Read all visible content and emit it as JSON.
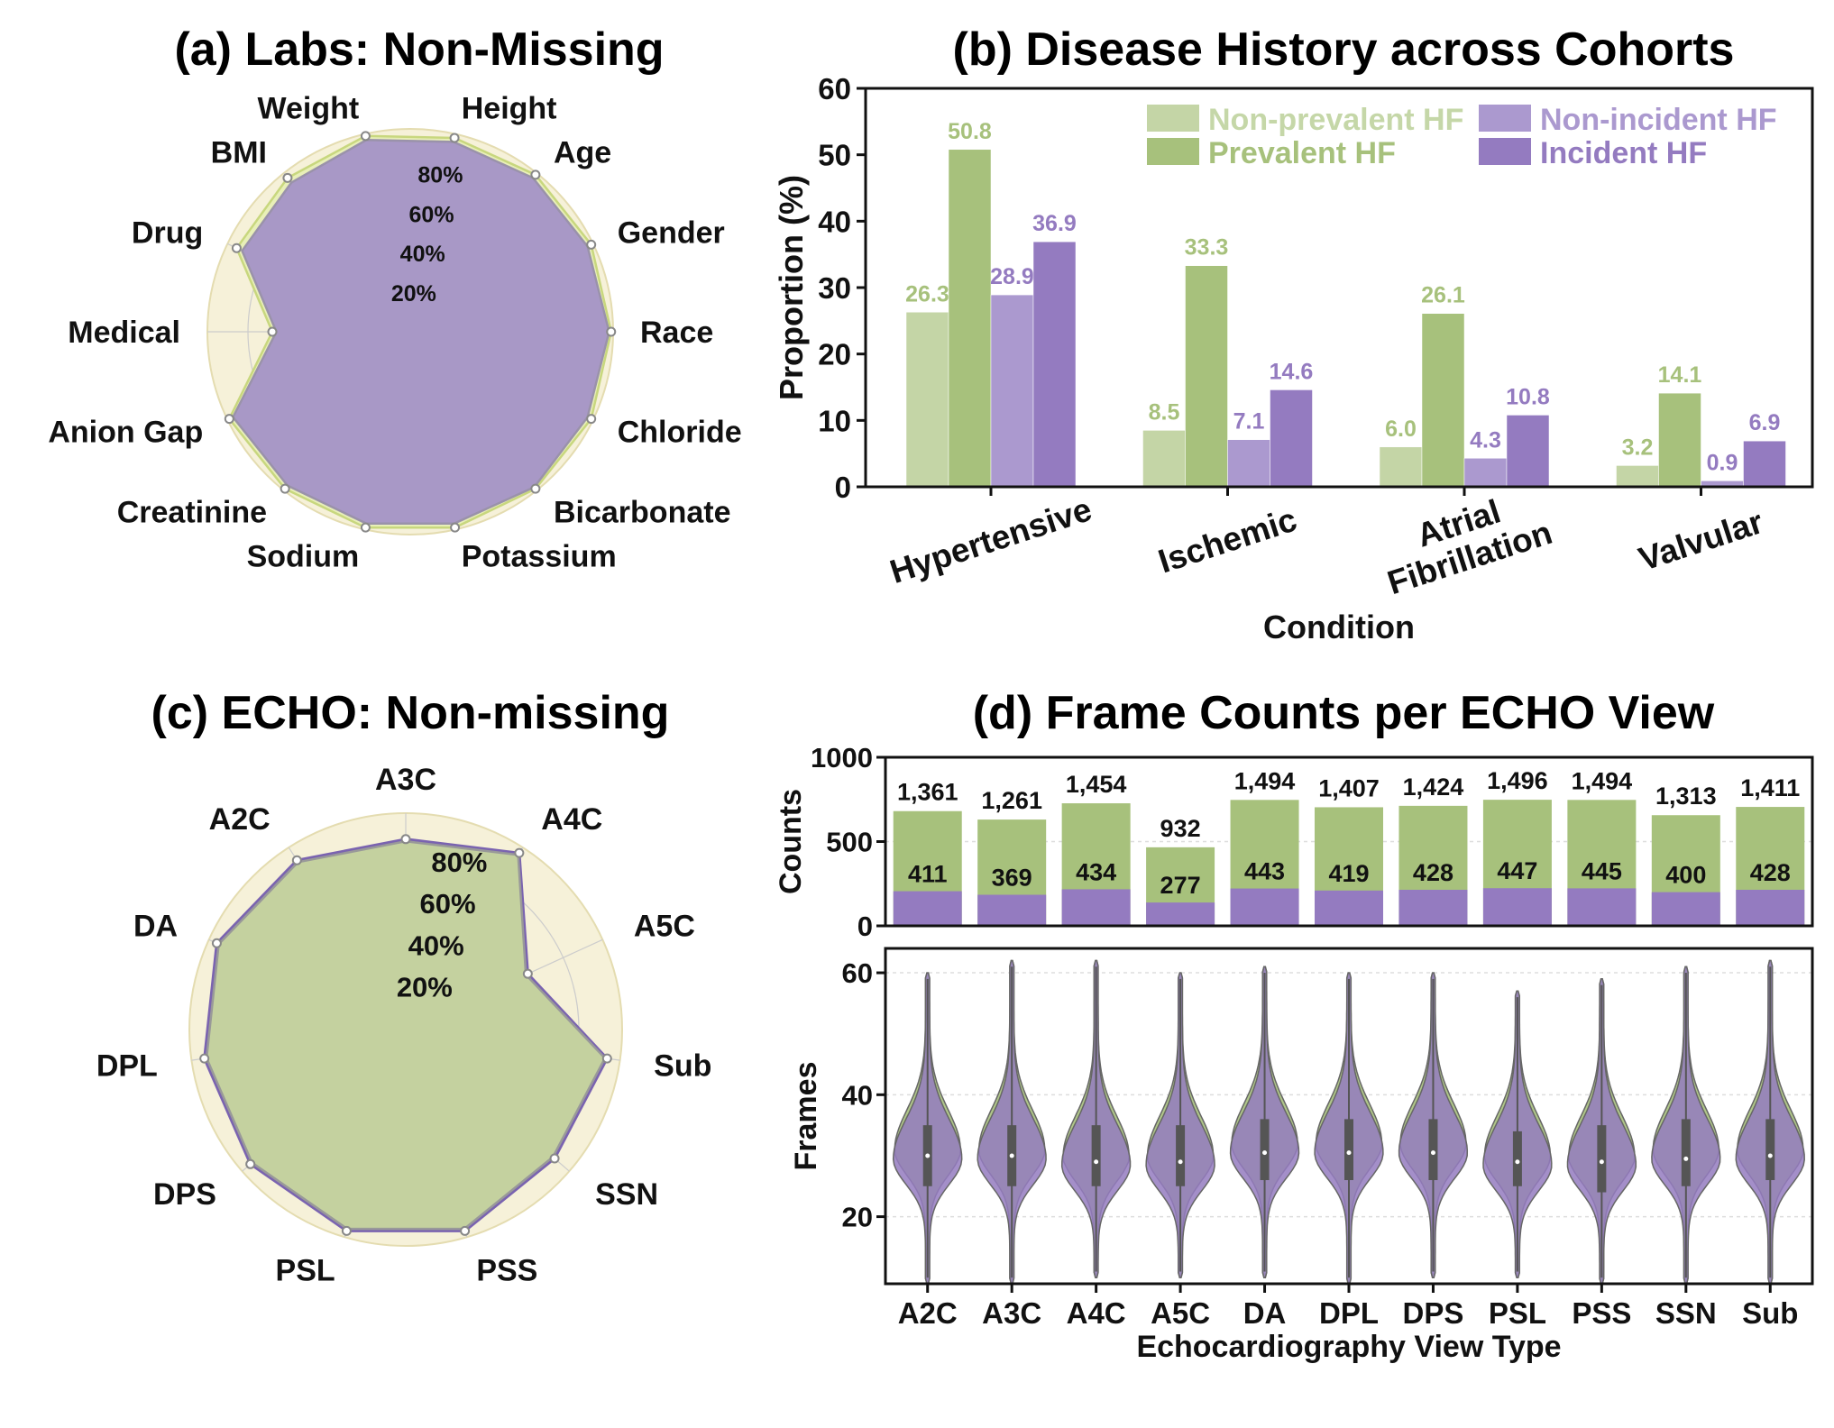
{
  "colors": {
    "light_green": "#c4d5a6",
    "green": "#a7c17c",
    "light_purple": "#ab99cf",
    "purple": "#947bc0",
    "radar_bg": "#f6f1d9",
    "radar_bg_edge": "#e4dcb0",
    "labs_fill": "#a898c6",
    "echo_fill": "#c4d19f",
    "dark_gray": "#555555",
    "grid_gray": "#cccccc"
  },
  "chart_data": [
    {
      "id": "a",
      "type": "radar",
      "title": "(a) Labs: Non-Missing",
      "axes": [
        "Weight",
        "Height",
        "Age",
        "Gender",
        "Race",
        "Chloride",
        "Bicarbonate",
        "Potassium",
        "Sodium",
        "Creatinine",
        "Anion Gap",
        "Medical",
        "Drug",
        "BMI"
      ],
      "rlim": [
        0,
        100
      ],
      "rticks": [
        20,
        40,
        60,
        80
      ],
      "rtick_labels": [
        "20%",
        "40%",
        "60%",
        "80%"
      ],
      "series": [
        {
          "name": "Outer",
          "values": [
            99,
            98,
            99,
            99,
            99,
            99,
            99,
            99,
            99,
            99,
            99,
            68,
            95,
            97
          ]
        },
        {
          "name": "Inner",
          "values": [
            97,
            96,
            97,
            97,
            98,
            97,
            98,
            97,
            97,
            97,
            97,
            66,
            92,
            94
          ]
        }
      ]
    },
    {
      "id": "b",
      "type": "bar",
      "title": "(b) Disease History across Cohorts",
      "xlabel": "Condition",
      "ylabel": "Proportion (%)",
      "ylim": [
        0,
        60
      ],
      "yticks": [
        0,
        10,
        20,
        30,
        40,
        50,
        60
      ],
      "categories": [
        "Hypertensive",
        "Ischemic",
        "Atrial\nFibrillation",
        "Valvular"
      ],
      "series": [
        {
          "name": "Non-prevalent HF",
          "values": [
            26.3,
            8.5,
            6.0,
            3.2
          ]
        },
        {
          "name": "Prevalent HF",
          "values": [
            50.8,
            33.3,
            26.1,
            14.1
          ]
        },
        {
          "name": "Non-incident HF",
          "values": [
            28.9,
            7.1,
            4.3,
            0.9
          ]
        },
        {
          "name": "Incident HF",
          "values": [
            36.9,
            14.6,
            10.8,
            6.9
          ]
        }
      ],
      "value_labels": [
        [
          "26.3",
          "8.5",
          "6.0",
          "3.2"
        ],
        [
          "50.8",
          "33.3",
          "26.1",
          "14.1"
        ],
        [
          "28.9",
          "7.1",
          "4.3",
          "0.9"
        ],
        [
          "36.9",
          "14.6",
          "10.8",
          "6.9"
        ]
      ],
      "legend_position": "top-right"
    },
    {
      "id": "c",
      "type": "radar",
      "title": "(c) ECHO: Non-missing",
      "axes": [
        "A3C",
        "A4C",
        "A5C",
        "Sub",
        "SSN",
        "PSS",
        "PSL",
        "DPS",
        "DPL",
        "DA",
        "A2C"
      ],
      "rlim": [
        0,
        100
      ],
      "rticks": [
        20,
        40,
        60,
        80
      ],
      "rtick_labels": [
        "20%",
        "40%",
        "60%",
        "80%"
      ],
      "series": [
        {
          "name": "Outer",
          "values": [
            88,
            97,
            62,
            94,
            91,
            97,
            97,
            95,
            94,
            96,
            93
          ]
        },
        {
          "name": "Inner",
          "values": [
            87,
            96,
            61,
            93,
            90,
            96,
            96,
            94,
            93,
            95,
            92
          ]
        }
      ]
    },
    {
      "id": "d-top",
      "type": "bar",
      "title": "(d) Frame Counts per ECHO View",
      "ylabel": "Counts",
      "ylim": [
        0,
        1000
      ],
      "yticks": [
        0,
        500,
        1000
      ],
      "categories": [
        "A2C",
        "A3C",
        "A4C",
        "A5C",
        "DA",
        "DPL",
        "DPS",
        "PSL",
        "PSS",
        "SSN",
        "Sub"
      ],
      "series": [
        {
          "name": "Total",
          "values": [
            1361,
            1261,
            1454,
            932,
            1494,
            1407,
            1424,
            1496,
            1494,
            1313,
            1411
          ]
        },
        {
          "name": "Subset",
          "values": [
            411,
            369,
            434,
            277,
            443,
            419,
            428,
            447,
            445,
            400,
            428
          ]
        }
      ],
      "total_labels": [
        "1,361",
        "1,261",
        "1,454",
        "932",
        "1,494",
        "1,407",
        "1,424",
        "1,496",
        "1,494",
        "1,313",
        "1,411"
      ],
      "subset_labels": [
        "411",
        "369",
        "434",
        "277",
        "443",
        "419",
        "428",
        "447",
        "445",
        "400",
        "428"
      ]
    },
    {
      "id": "d-bottom",
      "type": "violin",
      "xlabel": "Echocardiography View Type",
      "ylabel": "Frames",
      "ylim": [
        9,
        64
      ],
      "yticks": [
        20,
        40,
        60
      ],
      "categories": [
        "A2C",
        "A3C",
        "A4C",
        "A5C",
        "DA",
        "DPL",
        "DPS",
        "PSL",
        "PSS",
        "SSN",
        "Sub"
      ],
      "stats": [
        {
          "min": 9,
          "max": 60,
          "q1": 25,
          "median": 30,
          "q3": 35,
          "peak": 30
        },
        {
          "min": 9,
          "max": 62,
          "q1": 25,
          "median": 30,
          "q3": 35,
          "peak": 30
        },
        {
          "min": 10,
          "max": 62,
          "q1": 25,
          "median": 29,
          "q3": 35,
          "peak": 29
        },
        {
          "min": 10,
          "max": 60,
          "q1": 25,
          "median": 29,
          "q3": 35,
          "peak": 29
        },
        {
          "min": 10,
          "max": 61,
          "q1": 26,
          "median": 30.5,
          "q3": 36,
          "peak": 31
        },
        {
          "min": 9,
          "max": 60,
          "q1": 26,
          "median": 30.5,
          "q3": 36,
          "peak": 31
        },
        {
          "min": 10,
          "max": 60,
          "q1": 26,
          "median": 30.5,
          "q3": 36,
          "peak": 31
        },
        {
          "min": 10,
          "max": 57,
          "q1": 25,
          "median": 29,
          "q3": 34,
          "peak": 29
        },
        {
          "min": 9,
          "max": 59,
          "q1": 24,
          "median": 29,
          "q3": 35,
          "peak": 29
        },
        {
          "min": 9,
          "max": 61,
          "q1": 25,
          "median": 29.5,
          "q3": 36,
          "peak": 30
        },
        {
          "min": 9,
          "max": 62,
          "q1": 26,
          "median": 30,
          "q3": 36,
          "peak": 30
        }
      ]
    }
  ]
}
